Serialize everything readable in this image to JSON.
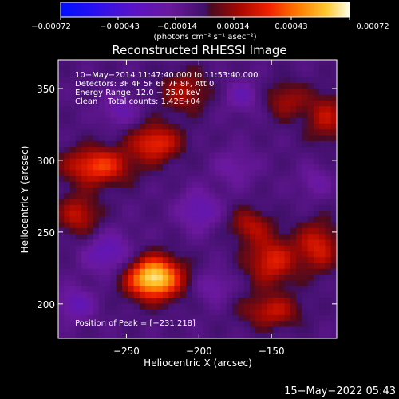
{
  "chart_data": [
    {
      "type": "heatmap",
      "title": "Reconstructed RHESSI Image",
      "xlabel": "Heliocentric X (arcsec)",
      "ylabel": "Heliocentric Y (arcsec)",
      "xlim": [
        -297,
        -105
      ],
      "ylim": [
        176,
        370
      ],
      "x_ticks": [
        -250,
        -200,
        -150
      ],
      "y_ticks": [
        200,
        250,
        300,
        350
      ],
      "x_tick_labels": [
        "−250",
        "−200",
        "−150"
      ],
      "y_tick_labels": [
        "200",
        "250",
        "300",
        "350"
      ],
      "colorbar": {
        "ticks": [
          "−0.00072",
          "−0.00043",
          "−0.00014",
          "0.00014",
          "0.00043",
          "0.00072"
        ],
        "unit": "(photons cm⁻² s⁻¹ asec⁻²)",
        "range": [
          -0.00072,
          0.00072
        ]
      },
      "sources": [
        {
          "x": -231,
          "y": 218,
          "sigx": 13,
          "sigy": 10,
          "amp": 0.00075
        },
        {
          "x": -270,
          "y": 296,
          "sigx": 16,
          "sigy": 9,
          "amp": 0.00042
        },
        {
          "x": -230,
          "y": 312,
          "sigx": 12,
          "sigy": 9,
          "amp": 0.00038
        },
        {
          "x": -283,
          "y": 262,
          "sigx": 10,
          "sigy": 10,
          "amp": 0.00028
        },
        {
          "x": -210,
          "y": 348,
          "sigx": 12,
          "sigy": 10,
          "amp": 0.00024
        },
        {
          "x": -112,
          "y": 330,
          "sigx": 10,
          "sigy": 12,
          "amp": 0.00026
        },
        {
          "x": -140,
          "y": 342,
          "sigx": 10,
          "sigy": 9,
          "amp": 0.00022
        },
        {
          "x": -150,
          "y": 230,
          "sigx": 12,
          "sigy": 12,
          "amp": 0.00034
        },
        {
          "x": -118,
          "y": 240,
          "sigx": 10,
          "sigy": 12,
          "amp": 0.00032
        },
        {
          "x": -165,
          "y": 255,
          "sigx": 10,
          "sigy": 8,
          "amp": 0.00024
        },
        {
          "x": -150,
          "y": 195,
          "sigx": 14,
          "sigy": 8,
          "amp": 0.00028
        },
        {
          "x": -200,
          "y": 265,
          "sigx": 10,
          "sigy": 10,
          "amp": -0.00022
        },
        {
          "x": -262,
          "y": 235,
          "sigx": 12,
          "sigy": 10,
          "amp": -0.00024
        },
        {
          "x": -285,
          "y": 200,
          "sigx": 9,
          "sigy": 8,
          "amp": -0.00022
        },
        {
          "x": -255,
          "y": 335,
          "sigx": 9,
          "sigy": 8,
          "amp": -0.00018
        },
        {
          "x": -170,
          "y": 345,
          "sigx": 9,
          "sigy": 8,
          "amp": -0.00018
        },
        {
          "x": -190,
          "y": 212,
          "sigx": 9,
          "sigy": 8,
          "amp": -0.00016
        },
        {
          "x": -175,
          "y": 295,
          "sigx": 10,
          "sigy": 9,
          "amp": -0.00014
        },
        {
          "x": -120,
          "y": 285,
          "sigx": 8,
          "sigy": 8,
          "amp": -0.00014
        }
      ],
      "baseline": -6e-05,
      "annotations": {
        "line1": "10−May−2014 11:47:40.000 to 11:53:40.000",
        "line2": "Detectors: 3F 4F 5F 6F 7F 8F, Att 0",
        "line3": "Energy Range: 12.0 − 25.0 keV",
        "line4": "Clean    Total counts: 1.42E+04",
        "peak": "Position of Peak = [−231,218]"
      }
    }
  ],
  "footer": {
    "timestamp": "15−May−2022 05:43"
  }
}
